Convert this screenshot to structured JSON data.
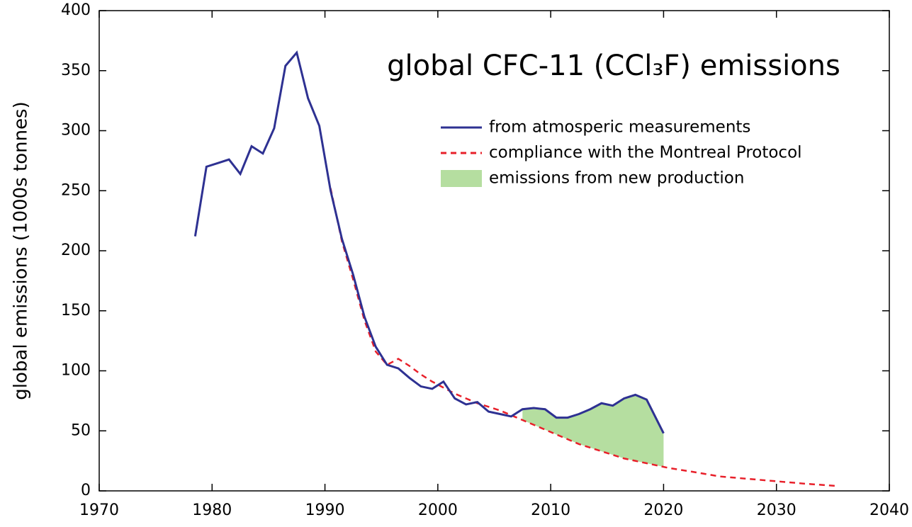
{
  "chart_data": {
    "type": "line",
    "title": "global CFC-11 (CCl₃F) emissions",
    "ylabel": "global emissions (1000s tonnes)",
    "xlim": [
      1970,
      2040
    ],
    "xticks": [
      1970,
      1980,
      1990,
      2000,
      2010,
      2020,
      2030,
      2040
    ],
    "ylim": [
      0,
      400
    ],
    "yticks": [
      0,
      50,
      100,
      150,
      200,
      250,
      300,
      350,
      400
    ],
    "series": [
      {
        "name": "from atmosperic measurements",
        "color": "#2e3192",
        "style": "solid",
        "x": [
          1978.5,
          1979.5,
          1980.5,
          1981.5,
          1982.5,
          1983.5,
          1984.5,
          1985.5,
          1986.5,
          1987.5,
          1988.5,
          1989.5,
          1990.5,
          1991.5,
          1992.5,
          1993.5,
          1994.5,
          1995.5,
          1996.5,
          1997.5,
          1998.5,
          1999.5,
          2000.5,
          2001.5,
          2002.5,
          2003.5,
          2004.5,
          2005.5,
          2006.5,
          2007.5,
          2008.5,
          2009.5,
          2010.5,
          2011.5,
          2012.5,
          2013.5,
          2014.5,
          2015.5,
          2016.5,
          2017.5,
          2018.5,
          2020
        ],
        "values": [
          212,
          270,
          273,
          276,
          264,
          287,
          281,
          302,
          354,
          365,
          327,
          304,
          250,
          210,
          180,
          145,
          120,
          105,
          102,
          94,
          87,
          85,
          91,
          77,
          72,
          74,
          66,
          64,
          62,
          68,
          69,
          68,
          61,
          61,
          64,
          68,
          73,
          71,
          77,
          80,
          76,
          48
        ]
      },
      {
        "name": "compliance with the Montreal Protocol",
        "color": "#e8202a",
        "style": "dashed",
        "x": [
          1990.5,
          1991.5,
          1992.5,
          1993.5,
          1994.5,
          1995.5,
          1996.5,
          1997.5,
          1998.5,
          1999.5,
          2000.5,
          2001.5,
          2002.5,
          2003.5,
          2004.5,
          2005.5,
          2006.5,
          2007.5,
          2008.5,
          2009.5,
          2010.5,
          2011.5,
          2012.5,
          2013.5,
          2014.5,
          2015.5,
          2016.5,
          2017.5,
          2018.5,
          2019.5,
          2020.5,
          2022.5,
          2025,
          2027.5,
          2030,
          2032.5,
          2035.5
        ],
        "values": [
          252,
          208,
          176,
          142,
          116,
          105,
          110,
          104,
          97,
          91,
          86,
          81,
          77,
          73,
          70,
          67,
          63,
          59,
          55,
          51,
          47,
          43,
          39,
          36,
          33,
          30,
          27,
          25,
          23,
          21,
          19,
          16,
          12,
          10,
          8,
          6,
          4
        ]
      },
      {
        "name": "emissions from new production",
        "color": "#b5dea0",
        "style": "area",
        "x": [
          2007.5,
          2008.5,
          2009.5,
          2010.5,
          2011.5,
          2012.5,
          2013.5,
          2014.5,
          2015.5,
          2016.5,
          2017.5,
          2018.5,
          2020
        ],
        "upper": [
          68,
          69,
          68,
          61,
          61,
          64,
          68,
          73,
          71,
          77,
          80,
          76,
          48
        ],
        "lower": [
          59,
          55,
          51,
          47,
          43,
          39,
          36,
          33,
          30,
          27,
          25,
          23,
          20
        ]
      }
    ]
  }
}
